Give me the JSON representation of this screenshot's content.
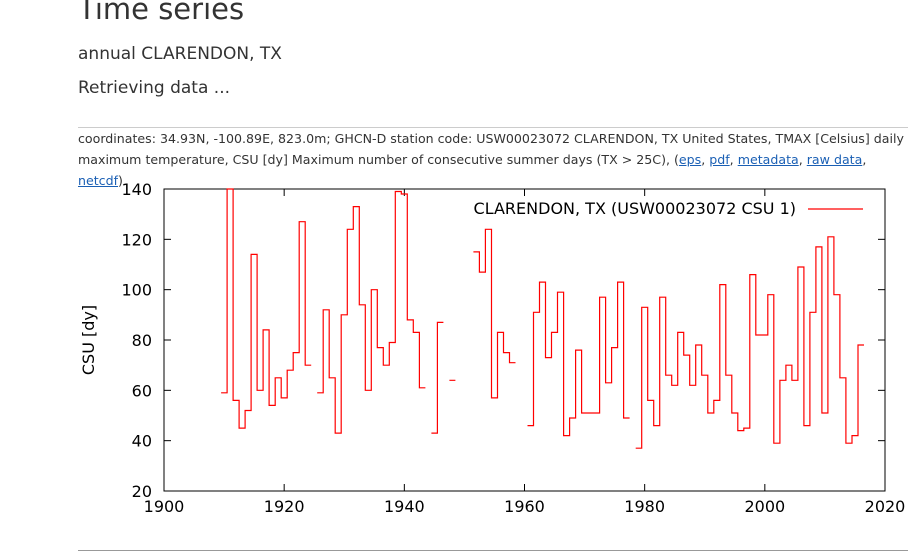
{
  "header": {
    "title": "Time series",
    "subtitle": "annual CLARENDON, TX",
    "status": "Retrieving data ..."
  },
  "description": {
    "text": "coordinates: 34.93N, -100.89E, 823.0m; GHCN-D station code: USW00023072 CLARENDON, TX United States, TMAX [Celsius] daily maximum temperature, CSU [dy] Maximum number of consecutive summer days (TX > 25C), (",
    "links": [
      "eps",
      "pdf",
      "metadata",
      "raw data",
      "netcdf"
    ],
    "separator": ", ",
    "closing": ")"
  },
  "colors": {
    "series": "#ff0000",
    "axis": "#000000",
    "link": "#1a5fb4"
  },
  "chart_data": {
    "type": "line",
    "style": "step",
    "title": "",
    "xlabel": "",
    "ylabel": "CSU [dy]",
    "xlim": [
      1900,
      2020
    ],
    "ylim": [
      20,
      140
    ],
    "xticks": [
      1900,
      1920,
      1940,
      1960,
      1980,
      2000,
      2020
    ],
    "yticks": [
      20,
      40,
      60,
      80,
      100,
      120,
      140
    ],
    "legend_position": "top-right",
    "grid": false,
    "series": [
      {
        "name": "CLARENDON, TX (USW00023072 CSU 1)",
        "color": "#ff0000",
        "x": [
          1910,
          1911,
          1912,
          1913,
          1914,
          1915,
          1916,
          1917,
          1918,
          1919,
          1920,
          1921,
          1922,
          1923,
          1924,
          1925,
          1926,
          1927,
          1928,
          1929,
          1930,
          1931,
          1932,
          1933,
          1934,
          1935,
          1936,
          1937,
          1938,
          1939,
          1940,
          1941,
          1942,
          1943,
          1944,
          1945,
          1946,
          1947,
          1948,
          1949,
          1950,
          1951,
          1952,
          1953,
          1954,
          1955,
          1956,
          1957,
          1958,
          1959,
          1960,
          1961,
          1962,
          1963,
          1964,
          1965,
          1966,
          1967,
          1968,
          1969,
          1970,
          1971,
          1972,
          1973,
          1974,
          1975,
          1976,
          1977,
          1978,
          1979,
          1980,
          1981,
          1982,
          1983,
          1984,
          1985,
          1986,
          1987,
          1988,
          1989,
          1990,
          1991,
          1992,
          1993,
          1994,
          1995,
          1996,
          1997,
          1998,
          1999,
          2000,
          2001,
          2002,
          2003,
          2004,
          2005,
          2006,
          2007,
          2008,
          2009,
          2010,
          2011,
          2012,
          2013,
          2014,
          2015,
          2016
        ],
        "values": [
          59,
          140,
          56,
          45,
          52,
          114,
          60,
          84,
          54,
          65,
          57,
          68,
          75,
          127,
          70,
          null,
          59,
          92,
          65,
          43,
          90,
          124,
          133,
          94,
          60,
          100,
          77,
          70,
          79,
          139,
          138,
          88,
          83,
          61,
          null,
          43,
          87,
          null,
          64,
          null,
          null,
          null,
          115,
          107,
          124,
          57,
          83,
          75,
          71,
          null,
          null,
          46,
          91,
          103,
          73,
          83,
          99,
          42,
          49,
          76,
          51,
          51,
          51,
          97,
          63,
          77,
          103,
          49,
          null,
          37,
          93,
          56,
          46,
          97,
          66,
          62,
          83,
          74,
          62,
          78,
          66,
          51,
          56,
          102,
          66,
          51,
          44,
          45,
          106,
          82,
          82,
          98,
          39,
          64,
          70,
          64,
          109,
          46,
          91,
          117,
          51,
          121,
          98,
          65,
          39,
          42,
          78
        ]
      }
    ]
  }
}
